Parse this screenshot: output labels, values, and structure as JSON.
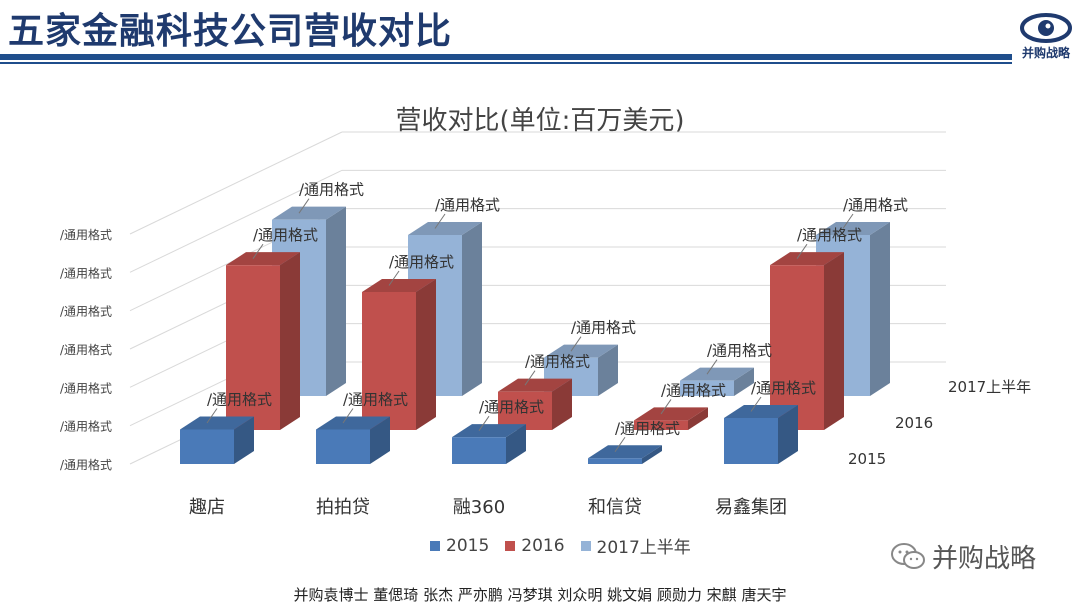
{
  "header": {
    "title": "五家金融科技公司营收对比",
    "logo_text": "并购战略"
  },
  "chart_data": {
    "type": "bar",
    "title": "营收对比(单位:百万美元)",
    "categories": [
      "趣店",
      "拍拍贷",
      "融360",
      "和信贷",
      "易鑫集团"
    ],
    "series": [
      {
        "name": "2015",
        "values": [
          90,
          90,
          70,
          15,
          120
        ]
      },
      {
        "name": "2016",
        "values": [
          430,
          360,
          100,
          25,
          430
        ]
      },
      {
        "name": "2017上半年",
        "values": [
          460,
          420,
          100,
          40,
          420
        ]
      }
    ],
    "data_label": "/通用格式",
    "axis_tick_labels": [
      "/通用格式",
      "/通用格式",
      "/通用格式",
      "/通用格式",
      "/通用格式",
      "/通用格式",
      "/通用格式"
    ],
    "depth_labels": [
      "2015",
      "2016",
      "2017上半年"
    ],
    "ylim": [
      0,
      600
    ],
    "grid": true,
    "legend_position": "bottom",
    "colors": {
      "2015": "#4a7ab8",
      "2016": "#c0504d",
      "2017上半年": "#95b3d7"
    }
  },
  "watermark": {
    "brand": "并购战略"
  },
  "footer": {
    "credits": "并购袁博士 董偲琦 张杰 严亦鹏 冯梦琪 刘众明 姚文娟 顾勋力 宋麒 唐天宇"
  }
}
